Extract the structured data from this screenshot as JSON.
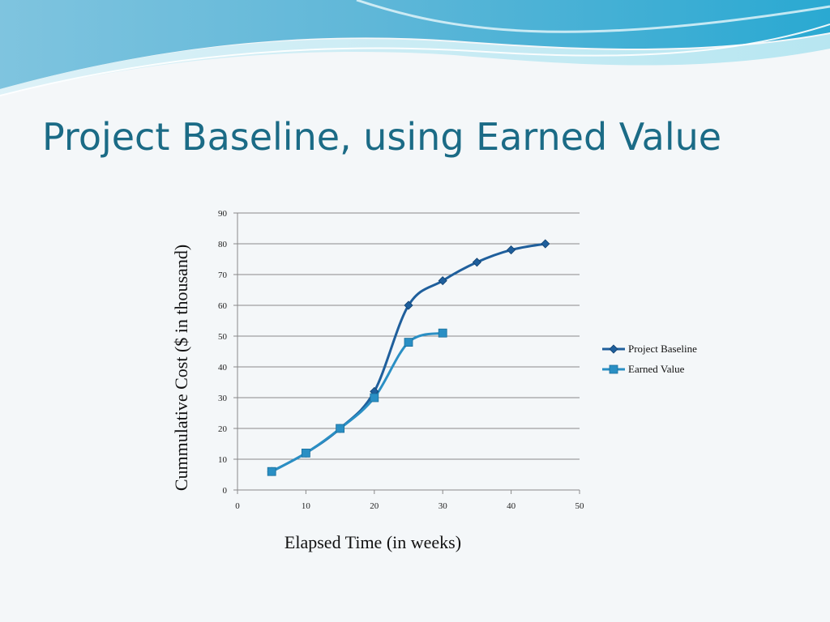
{
  "title": "Project Baseline, using Earned Value",
  "colors": {
    "title": "#1b6b86",
    "baseline": "#1f5f9c",
    "earned": "#2a8fc4",
    "grid": "#8a8a8a",
    "wave_dark": "#2ba3c9",
    "wave_light": "#bfe7f2"
  },
  "chart_data": {
    "type": "line",
    "xlabel": "Elapsed Time (in weeks)",
    "ylabel": "Cummulative Cost ($ in thousand)",
    "xlim": [
      0,
      50
    ],
    "ylim": [
      0,
      90
    ],
    "xticks": [
      0,
      10,
      20,
      30,
      40,
      50
    ],
    "yticks": [
      0,
      10,
      20,
      30,
      40,
      50,
      60,
      70,
      80,
      90
    ],
    "grid": true,
    "legend_position": "right",
    "series": [
      {
        "name": "Project Baseline",
        "marker": "diamond",
        "x": [
          5,
          10,
          15,
          20,
          25,
          30,
          35,
          40,
          45
        ],
        "y": [
          6,
          12,
          20,
          32,
          60,
          68,
          74,
          78,
          80
        ]
      },
      {
        "name": "Earned Value",
        "marker": "square",
        "x": [
          5,
          10,
          15,
          20,
          25,
          30
        ],
        "y": [
          6,
          12,
          20,
          30,
          48,
          51
        ]
      }
    ]
  }
}
